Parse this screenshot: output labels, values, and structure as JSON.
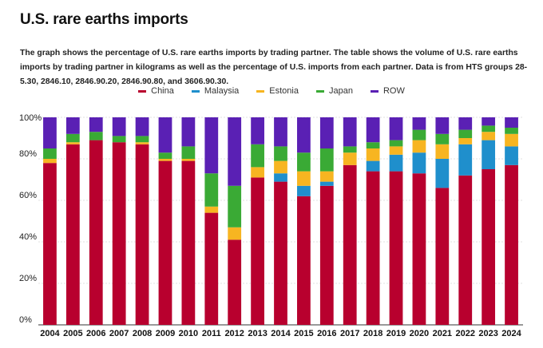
{
  "chart_data": {
    "type": "bar",
    "stacked": true,
    "title": "U.S. rare earths imports",
    "subtitle": "The graph shows the percentage of U.S. rare earths imports by trading partner. The table shows the volume of U.S. rare earths imports by trading partner in kilograms as well as the percentage of U.S. imports from each partner. Data is from HTS groups 28-5.30, 2846.10, 2846.90.20, 2846.90.80, and 3606.90.30.",
    "categories": [
      "2004",
      "2005",
      "2006",
      "2007",
      "2008",
      "2009",
      "2010",
      "2011",
      "2012",
      "2013",
      "2014",
      "2015",
      "2016",
      "2017",
      "2018",
      "2019",
      "2020",
      "2021",
      "2022",
      "2023",
      "2024"
    ],
    "ylim": [
      0,
      100
    ],
    "yticks": [
      0,
      20,
      40,
      60,
      80,
      100
    ],
    "ytick_suffix": "%",
    "legend_position": "top",
    "series": [
      {
        "name": "China",
        "color": "#b8002e",
        "values": [
          78,
          87,
          89,
          88,
          87,
          79,
          79,
          54,
          41,
          71,
          69,
          62,
          67,
          77,
          74,
          74,
          73,
          66,
          72,
          75,
          77
        ]
      },
      {
        "name": "Malaysia",
        "color": "#1f8fcc",
        "values": [
          0,
          0,
          0,
          0,
          0,
          0,
          0,
          0,
          0,
          0,
          4,
          5,
          2,
          0,
          5,
          8,
          10,
          14,
          15,
          14,
          9
        ]
      },
      {
        "name": "Estonia",
        "color": "#f7b521",
        "values": [
          2,
          1,
          0,
          0,
          1,
          1,
          1,
          3,
          6,
          5,
          6,
          7,
          5,
          6,
          6,
          4,
          6,
          7,
          3,
          4,
          6
        ]
      },
      {
        "name": "Japan",
        "color": "#3aaa35",
        "values": [
          5,
          4,
          4,
          3,
          3,
          3,
          6,
          16,
          20,
          11,
          7,
          9,
          11,
          3,
          3,
          3,
          5,
          5,
          4,
          3,
          3
        ]
      },
      {
        "name": "ROW",
        "color": "#5a20b4",
        "values": [
          15,
          8,
          7,
          9,
          9,
          17,
          14,
          27,
          33,
          13,
          14,
          17,
          15,
          14,
          12,
          11,
          6,
          8,
          6,
          4,
          5
        ]
      }
    ]
  }
}
